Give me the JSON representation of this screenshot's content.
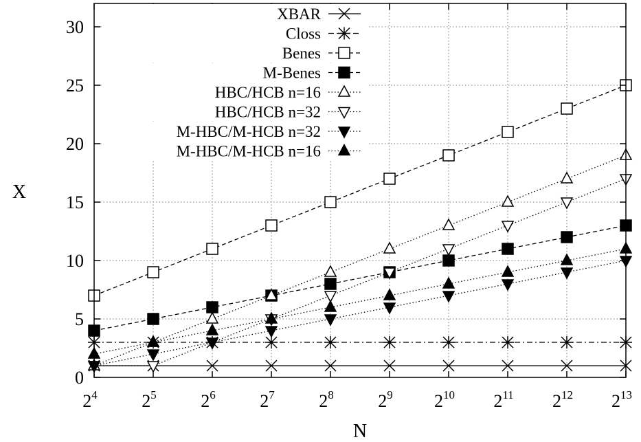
{
  "chart_data": {
    "type": "line",
    "xlabel": "N",
    "ylabel": "X",
    "x_exponent_base": "2",
    "x": [
      4,
      5,
      6,
      7,
      8,
      9,
      10,
      11,
      12,
      13
    ],
    "xlim": [
      4,
      13
    ],
    "ylim": [
      0,
      32
    ],
    "yticks": [
      0,
      5,
      10,
      15,
      20,
      25,
      30
    ],
    "grid": true,
    "legend_position": "top-left",
    "series": [
      {
        "name": "XBAR",
        "marker": "x",
        "line": "solid",
        "values": [
          1,
          1,
          1,
          1,
          1,
          1,
          1,
          1,
          1,
          1
        ]
      },
      {
        "name": "Closs",
        "marker": "star",
        "line": "dashdot",
        "values": [
          3,
          3,
          3,
          3,
          3,
          3,
          3,
          3,
          3,
          3
        ]
      },
      {
        "name": "Benes",
        "marker": "square-open",
        "line": "dashed",
        "values": [
          7,
          9,
          11,
          13,
          15,
          17,
          19,
          21,
          23,
          25
        ]
      },
      {
        "name": "M-Benes",
        "marker": "square-filled",
        "line": "dashed",
        "values": [
          4,
          5,
          6,
          7,
          8,
          9,
          10,
          11,
          12,
          13
        ]
      },
      {
        "name": "HBC/HCB n=16",
        "marker": "triangle-up-open",
        "line": "dotted",
        "values": [
          1,
          3,
          5,
          7,
          9,
          11,
          13,
          15,
          17,
          19
        ]
      },
      {
        "name": "HBC/HCB n=32",
        "marker": "triangle-down-open",
        "line": "dotted",
        "values": [
          1,
          1,
          3,
          5,
          7,
          9,
          11,
          13,
          15,
          17
        ]
      },
      {
        "name": "M-HBC/M-HCB n=32",
        "marker": "triangle-down-filled",
        "line": "dotted",
        "values": [
          1,
          2,
          3,
          4,
          5,
          6,
          7,
          8,
          9,
          10
        ]
      },
      {
        "name": "M-HBC/M-HCB n=16",
        "marker": "triangle-up-filled",
        "line": "dotted",
        "values": [
          2,
          3,
          4,
          5,
          6,
          7,
          8,
          9,
          10,
          11
        ]
      }
    ]
  }
}
